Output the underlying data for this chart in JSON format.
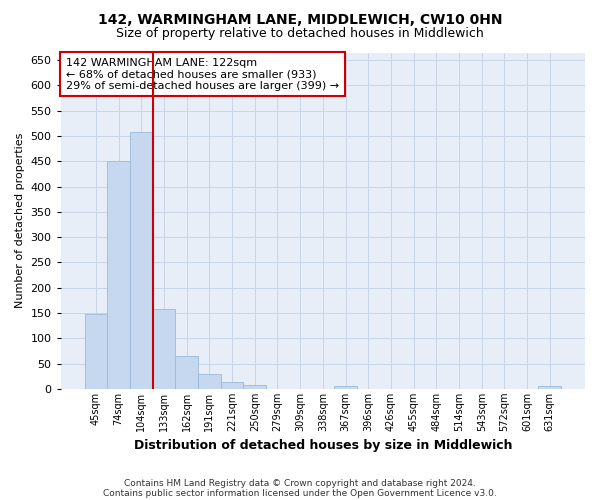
{
  "title": "142, WARMINGHAM LANE, MIDDLEWICH, CW10 0HN",
  "subtitle": "Size of property relative to detached houses in Middlewich",
  "xlabel": "Distribution of detached houses by size in Middlewich",
  "ylabel": "Number of detached properties",
  "footer_line1": "Contains HM Land Registry data © Crown copyright and database right 2024.",
  "footer_line2": "Contains public sector information licensed under the Open Government Licence v3.0.",
  "bar_color": "#c5d8ef",
  "bar_edge_color": "#9bbbd8",
  "grid_color": "#c8d4e8",
  "background_color": "#e8eef8",
  "vline_color": "#cc0000",
  "vline_position": 2.5,
  "annotation_text_line1": "142 WARMINGHAM LANE: 122sqm",
  "annotation_text_line2": "← 68% of detached houses are smaller (933)",
  "annotation_text_line3": "29% of semi-detached houses are larger (399) →",
  "categories": [
    "45sqm",
    "74sqm",
    "104sqm",
    "133sqm",
    "162sqm",
    "191sqm",
    "221sqm",
    "250sqm",
    "279sqm",
    "309sqm",
    "338sqm",
    "367sqm",
    "396sqm",
    "426sqm",
    "455sqm",
    "484sqm",
    "514sqm",
    "543sqm",
    "572sqm",
    "601sqm",
    "631sqm"
  ],
  "values": [
    148,
    450,
    507,
    158,
    66,
    30,
    13,
    8,
    0,
    0,
    0,
    5,
    0,
    0,
    0,
    0,
    0,
    0,
    0,
    0,
    5
  ],
  "ylim_max": 665,
  "yticks": [
    0,
    50,
    100,
    150,
    200,
    250,
    300,
    350,
    400,
    450,
    500,
    550,
    600,
    650
  ],
  "title_fontsize": 10,
  "subtitle_fontsize": 9,
  "ylabel_fontsize": 8,
  "xlabel_fontsize": 9,
  "tick_fontsize": 8,
  "xtick_fontsize": 7,
  "annotation_fontsize": 8,
  "footer_fontsize": 6.5
}
